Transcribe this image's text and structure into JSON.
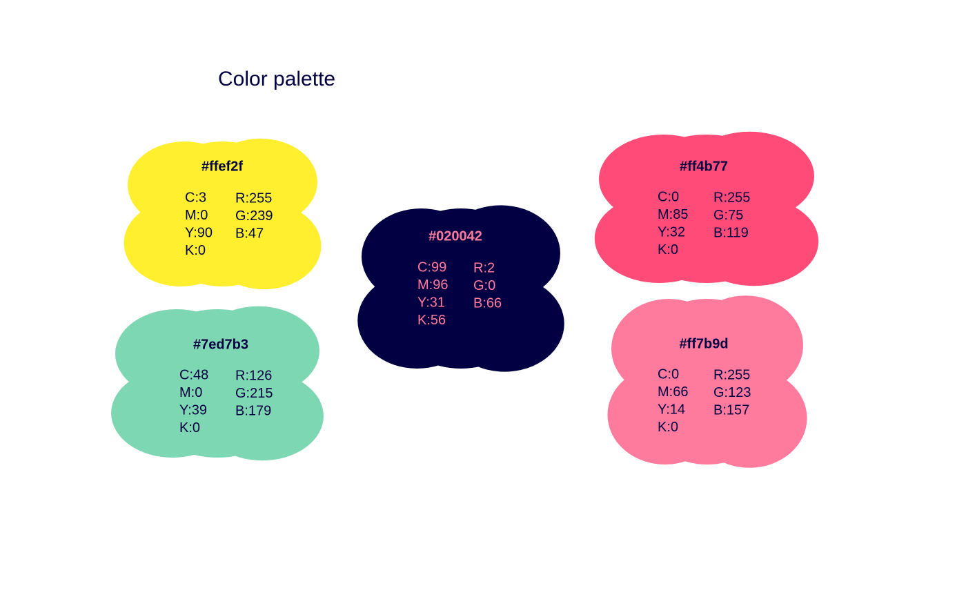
{
  "title": "Color palette",
  "swatches": [
    {
      "hex": "#ffef2f",
      "cmyk": [
        "C:3",
        "M:0",
        "Y:90",
        "K:0"
      ],
      "rgb": [
        "R:255",
        "G:239",
        "B:47"
      ]
    },
    {
      "hex": "#7ed7b3",
      "cmyk": [
        "C:48",
        "M:0",
        "Y:39",
        "K:0"
      ],
      "rgb": [
        "R:126",
        "G:215",
        "B:179"
      ]
    },
    {
      "hex": "#020042",
      "cmyk": [
        "C:99",
        "M:96",
        "Y:31",
        "K:56"
      ],
      "rgb": [
        "R:2",
        "G:0",
        "B:66"
      ]
    },
    {
      "hex": "#ff4b77",
      "cmyk": [
        "C:0",
        "M:85",
        "Y:32",
        "K:0"
      ],
      "rgb": [
        "R:255",
        "G:75",
        "B:119"
      ]
    },
    {
      "hex": "#ff7b9d",
      "cmyk": [
        "C:0",
        "M:66",
        "Y:14",
        "K:0"
      ],
      "rgb": [
        "R:255",
        "G:123",
        "B:157"
      ]
    }
  ]
}
